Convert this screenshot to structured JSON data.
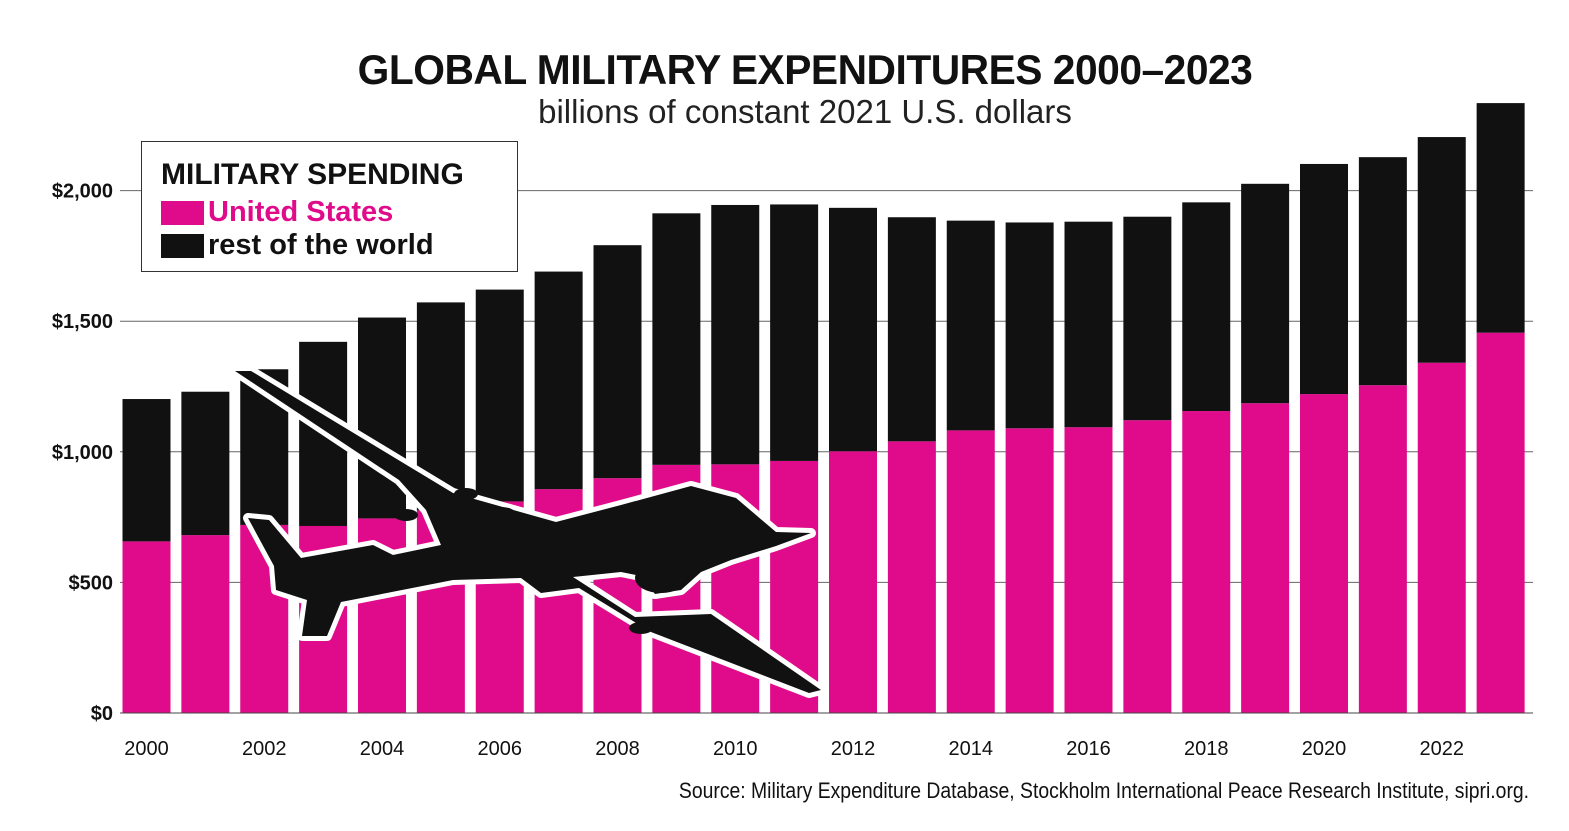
{
  "title": "GLOBAL MILITARY EXPENDITURES 2000–2023",
  "subtitle": "billions of constant 2021 U.S. dollars",
  "source": "Source: Military Expenditure Database, Stockholm International Peace Research Institute, sipri.org.",
  "legend": {
    "title": "MILITARY SPENDING",
    "items": [
      {
        "label": "United States",
        "color": "#e00b8a"
      },
      {
        "label": "rest of the world",
        "color": "#111111"
      }
    ],
    "position": "top-left"
  },
  "chart_data": {
    "type": "bar",
    "stacked": true,
    "title": "GLOBAL MILITARY EXPENDITURES 2000–2023",
    "subtitle": "billions of constant 2021 U.S. dollars",
    "xlabel": "",
    "ylabel": "",
    "ylim": [
      0,
      2500
    ],
    "yticks": [
      0,
      500,
      1000,
      1500,
      2000
    ],
    "ytick_labels": [
      "$0",
      "$500",
      "$1,000",
      "$1,500",
      "$2,000"
    ],
    "xtick_labels": [
      "2000",
      "2002",
      "2004",
      "2006",
      "2008",
      "2010",
      "2012",
      "2014",
      "2016",
      "2018",
      "2020",
      "2022"
    ],
    "grid": true,
    "categories": [
      "2000",
      "2001",
      "2002",
      "2003",
      "2004",
      "2005",
      "2006",
      "2007",
      "2008",
      "2009",
      "2010",
      "2011",
      "2012",
      "2013",
      "2014",
      "2015",
      "2016",
      "2017",
      "2018",
      "2019",
      "2020",
      "2021",
      "2022",
      "2023"
    ],
    "series": [
      {
        "name": "United States",
        "color": "#e00b8a",
        "values": [
          657,
          681,
          720,
          716,
          745,
          776,
          810,
          857,
          899,
          950,
          952,
          965,
          1002,
          1040,
          1082,
          1090,
          1094,
          1121,
          1156,
          1186,
          1221,
          1255,
          1341,
          1456
        ]
      },
      {
        "name": "rest of the world",
        "color": "#111111",
        "values": [
          545,
          549,
          596,
          705,
          769,
          796,
          811,
          833,
          892,
          963,
          993,
          982,
          932,
          858,
          803,
          788,
          787,
          779,
          799,
          840,
          881,
          873,
          864,
          879
        ]
      }
    ],
    "totals": [
      1202,
      1230,
      1316,
      1421,
      1514,
      1572,
      1621,
      1690,
      1791,
      1913,
      1945,
      1947,
      1934,
      1898,
      1885,
      1878,
      1881,
      1900,
      1955,
      2026,
      2102,
      2128,
      2205,
      2335
    ]
  }
}
